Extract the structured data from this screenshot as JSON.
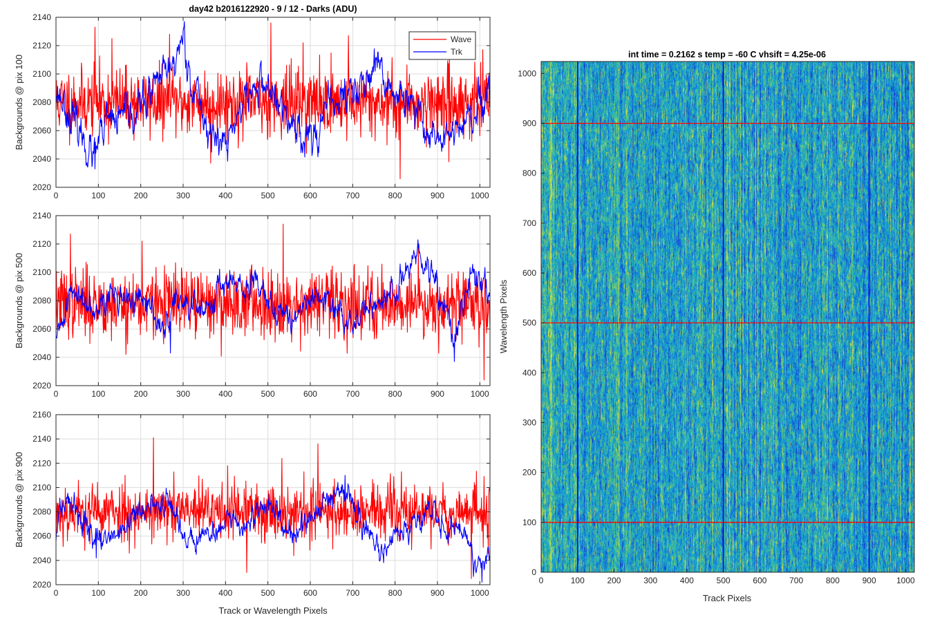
{
  "figure": {
    "suptitle": "day42 b2016122920 - 9 / 12 - Darks (ADU)",
    "left_xlabel": "Track or Wavelength Pixels"
  },
  "colors": {
    "wave": "#ff0000",
    "trk": "#0000ff",
    "grid": "#dcdcdc",
    "axis": "#262626"
  },
  "legend": {
    "entries": [
      "Wave",
      "Trk"
    ],
    "placement": "top-right of first panel"
  },
  "chart_data": [
    {
      "type": "line",
      "ylabel": "Backgrounds @ pix 100",
      "xlim": [
        0,
        1024
      ],
      "ylim": [
        2020,
        2140
      ],
      "xticks": [
        0,
        100,
        200,
        300,
        400,
        500,
        600,
        700,
        800,
        900,
        1000
      ],
      "yticks": [
        2020,
        2040,
        2060,
        2080,
        2100,
        2120,
        2140
      ],
      "grid": true,
      "series": [
        {
          "name": "Wave",
          "mean": 2080,
          "spread": 12,
          "seed": 11,
          "peaks": [
            [
              92,
              2133
            ],
            [
              132,
              2125
            ],
            [
              268,
              2128
            ],
            [
              507,
              2136
            ],
            [
              583,
              2122
            ],
            [
              690,
              2127
            ]
          ],
          "dips": [
            [
              365,
              2037
            ],
            [
              812,
              2026
            ],
            [
              927,
              2038
            ]
          ]
        },
        {
          "name": "Trk",
          "mean": 2077,
          "spread": 9,
          "seed": 23,
          "knots": [
            [
              0,
              2090
            ],
            [
              40,
              2068
            ],
            [
              90,
              2040
            ],
            [
              120,
              2065
            ],
            [
              180,
              2070
            ],
            [
              240,
              2093
            ],
            [
              275,
              2104
            ],
            [
              300,
              2128
            ],
            [
              320,
              2095
            ],
            [
              360,
              2060
            ],
            [
              400,
              2048
            ],
            [
              440,
              2080
            ],
            [
              490,
              2095
            ],
            [
              540,
              2070
            ],
            [
              600,
              2055
            ],
            [
              660,
              2082
            ],
            [
              700,
              2088
            ],
            [
              760,
              2100
            ],
            [
              820,
              2080
            ],
            [
              880,
              2060
            ],
            [
              930,
              2055
            ],
            [
              980,
              2068
            ],
            [
              1024,
              2082
            ]
          ],
          "peaks": [
            [
              303,
              2137
            ]
          ],
          "dips": [
            [
              92,
              2033
            ]
          ]
        }
      ]
    },
    {
      "type": "line",
      "ylabel": "Backgrounds @ pix 500",
      "xlim": [
        0,
        1024
      ],
      "ylim": [
        2020,
        2140
      ],
      "xticks": [
        0,
        100,
        200,
        300,
        400,
        500,
        600,
        700,
        800,
        900,
        1000
      ],
      "yticks": [
        2020,
        2040,
        2060,
        2080,
        2100,
        2120,
        2140
      ],
      "grid": true,
      "series": [
        {
          "name": "Wave",
          "mean": 2078,
          "spread": 12,
          "seed": 37,
          "peaks": [
            [
              34,
              2127
            ],
            [
              203,
              2122
            ],
            [
              536,
              2134
            ],
            [
              855,
              2120
            ]
          ],
          "dips": [
            [
              1010,
              2024
            ],
            [
              165,
              2042
            ]
          ]
        },
        {
          "name": "Trk",
          "mean": 2078,
          "spread": 7,
          "seed": 41,
          "knots": [
            [
              0,
              2048
            ],
            [
              30,
              2085
            ],
            [
              80,
              2080
            ],
            [
              150,
              2083
            ],
            [
              220,
              2076
            ],
            [
              260,
              2058
            ],
            [
              280,
              2080
            ],
            [
              340,
              2072
            ],
            [
              400,
              2096
            ],
            [
              440,
              2085
            ],
            [
              490,
              2095
            ],
            [
              520,
              2070
            ],
            [
              580,
              2070
            ],
            [
              600,
              2082
            ],
            [
              650,
              2075
            ],
            [
              700,
              2065
            ],
            [
              760,
              2080
            ],
            [
              800,
              2085
            ],
            [
              850,
              2112
            ],
            [
              900,
              2090
            ],
            [
              940,
              2050
            ],
            [
              980,
              2100
            ],
            [
              1010,
              2094
            ],
            [
              1024,
              2084
            ]
          ],
          "peaks": [
            [
              855,
              2117
            ]
          ],
          "dips": [
            [
              940,
              2037
            ],
            [
              270,
              2043
            ]
          ]
        }
      ]
    },
    {
      "type": "line",
      "ylabel": "Backgrounds @ pix 900",
      "xlim": [
        0,
        1024
      ],
      "ylim": [
        2020,
        2160
      ],
      "xticks": [
        0,
        100,
        200,
        300,
        400,
        500,
        600,
        700,
        800,
        900,
        1000
      ],
      "yticks": [
        2020,
        2040,
        2060,
        2080,
        2100,
        2120,
        2140,
        2160
      ],
      "grid": true,
      "series": [
        {
          "name": "Wave",
          "mean": 2080,
          "spread": 12,
          "seed": 53,
          "peaks": [
            [
              230,
              2141
            ],
            [
              618,
              2136
            ],
            [
              533,
              2124
            ],
            [
              405,
              2118
            ]
          ],
          "dips": [
            [
              450,
              2030
            ],
            [
              980,
              2025
            ]
          ]
        },
        {
          "name": "Trk",
          "mean": 2075,
          "spread": 7,
          "seed": 59,
          "knots": [
            [
              0,
              2060
            ],
            [
              30,
              2095
            ],
            [
              60,
              2072
            ],
            [
              100,
              2055
            ],
            [
              140,
              2060
            ],
            [
              200,
              2078
            ],
            [
              260,
              2090
            ],
            [
              300,
              2060
            ],
            [
              380,
              2065
            ],
            [
              420,
              2075
            ],
            [
              440,
              2058
            ],
            [
              480,
              2085
            ],
            [
              520,
              2075
            ],
            [
              560,
              2062
            ],
            [
              620,
              2080
            ],
            [
              680,
              2100
            ],
            [
              720,
              2075
            ],
            [
              760,
              2050
            ],
            [
              820,
              2062
            ],
            [
              880,
              2082
            ],
            [
              920,
              2068
            ],
            [
              960,
              2070
            ],
            [
              990,
              2032
            ],
            [
              1024,
              2048
            ]
          ],
          "peaks": [
            [
              682,
              2110
            ]
          ],
          "dips": [
            [
              1005,
              2022
            ],
            [
              95,
              2042
            ]
          ]
        }
      ]
    },
    {
      "type": "heatmap",
      "title": "int time = 0.2162 s    temp = -60 C    vhsift = 4.25e-06",
      "xlabel": "Track Pixels",
      "ylabel": "Wavelength Pixels",
      "xlim": [
        0,
        1024
      ],
      "ylim": [
        0,
        1024
      ],
      "xticks": [
        0,
        100,
        200,
        300,
        400,
        500,
        600,
        700,
        800,
        900,
        1000
      ],
      "yticks": [
        0,
        100,
        200,
        300,
        400,
        500,
        600,
        700,
        800,
        900,
        1000
      ],
      "colormap": "parula",
      "cuts": {
        "vertical_blue_at_track": [
          100,
          500,
          900
        ],
        "horizontal_red_at_wavelength": [
          100,
          500,
          900
        ]
      }
    }
  ]
}
